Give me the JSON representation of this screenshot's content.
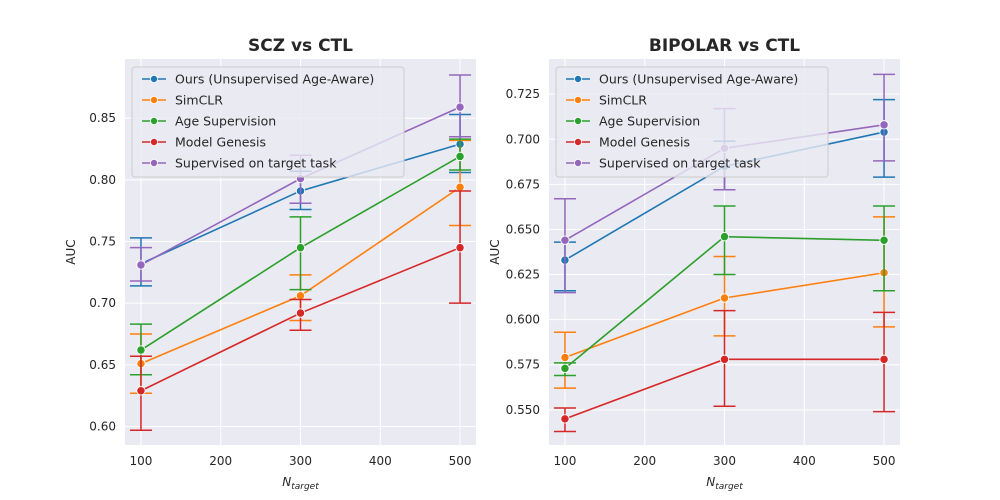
{
  "figure": {
    "background": "#ffffff",
    "axes_background": "#eaeaf2",
    "grid": true
  },
  "legend": {
    "placement": "upper-left",
    "entries": [
      "Ours (Unsupervised Age-Aware)",
      "SimCLR",
      "Age Supervision",
      "Model Genesis",
      "Supervised on target task"
    ]
  },
  "chart_data": [
    {
      "type": "line",
      "title": "SCZ vs CTL",
      "xlabel_main": "N",
      "xlabel_sub": "target",
      "ylabel": "AUC",
      "x": [
        100,
        300,
        500
      ],
      "xlim": [
        80,
        520
      ],
      "ylim": [
        0.585,
        0.898
      ],
      "xticks": [
        "100",
        "200",
        "300",
        "400",
        "500"
      ],
      "yticks": [
        "0.60",
        "0.65",
        "0.70",
        "0.75",
        "0.80",
        "0.85"
      ],
      "series": [
        {
          "name": "Ours (Unsupervised Age-Aware)",
          "color": "#1f77b4",
          "values": [
            0.732,
            0.791,
            0.829
          ],
          "err_low": [
            0.714,
            0.776,
            0.806
          ],
          "err_high": [
            0.753,
            0.807,
            0.853
          ]
        },
        {
          "name": "SimCLR",
          "color": "#ff7f0e",
          "values": [
            0.651,
            0.706,
            0.794
          ],
          "err_low": [
            0.627,
            0.686,
            0.763
          ],
          "err_high": [
            0.675,
            0.723,
            0.832
          ]
        },
        {
          "name": "Age Supervision",
          "color": "#2ca02c",
          "values": [
            0.662,
            0.745,
            0.819
          ],
          "err_low": [
            0.642,
            0.711,
            0.808
          ],
          "err_high": [
            0.683,
            0.77,
            0.833
          ]
        },
        {
          "name": "Model Genesis",
          "color": "#d62728",
          "values": [
            0.629,
            0.692,
            0.745
          ],
          "err_low": [
            0.597,
            0.678,
            0.7
          ],
          "err_high": [
            0.657,
            0.703,
            0.791
          ]
        },
        {
          "name": "Supervised on target task",
          "color": "#9467bd",
          "values": [
            0.731,
            0.801,
            0.859
          ],
          "err_low": [
            0.718,
            0.781,
            0.835
          ],
          "err_high": [
            0.745,
            0.82,
            0.885
          ]
        }
      ]
    },
    {
      "type": "line",
      "title": "BIPOLAR vs CTL",
      "xlabel_main": "N",
      "xlabel_sub": "target",
      "ylabel": "AUC",
      "x": [
        100,
        300,
        500
      ],
      "xlim": [
        80,
        520
      ],
      "ylim": [
        0.5305,
        0.7445
      ],
      "xticks": [
        "100",
        "200",
        "300",
        "400",
        "500"
      ],
      "yticks": [
        "0.550",
        "0.575",
        "0.600",
        "0.625",
        "0.650",
        "0.675",
        "0.700",
        "0.725"
      ],
      "series": [
        {
          "name": "Ours (Unsupervised Age-Aware)",
          "color": "#1f77b4",
          "values": [
            0.633,
            0.685,
            0.704
          ],
          "err_low": [
            0.616,
            0.672,
            0.679
          ],
          "err_high": [
            0.643,
            0.699,
            0.722
          ]
        },
        {
          "name": "SimCLR",
          "color": "#ff7f0e",
          "values": [
            0.579,
            0.612,
            0.626
          ],
          "err_low": [
            0.562,
            0.591,
            0.596
          ],
          "err_high": [
            0.593,
            0.635,
            0.657
          ]
        },
        {
          "name": "Age Supervision",
          "color": "#2ca02c",
          "values": [
            0.573,
            0.646,
            0.644
          ],
          "err_low": [
            0.569,
            0.625,
            0.616
          ],
          "err_high": [
            0.576,
            0.663,
            0.663
          ]
        },
        {
          "name": "Model Genesis",
          "color": "#d62728",
          "values": [
            0.545,
            0.578,
            0.578
          ],
          "err_low": [
            0.538,
            0.552,
            0.549
          ],
          "err_high": [
            0.551,
            0.605,
            0.604
          ]
        },
        {
          "name": "Supervised on target task",
          "color": "#9467bd",
          "values": [
            0.644,
            0.695,
            0.708
          ],
          "err_low": [
            0.615,
            0.672,
            0.688
          ],
          "err_high": [
            0.667,
            0.717,
            0.736
          ]
        }
      ]
    }
  ]
}
